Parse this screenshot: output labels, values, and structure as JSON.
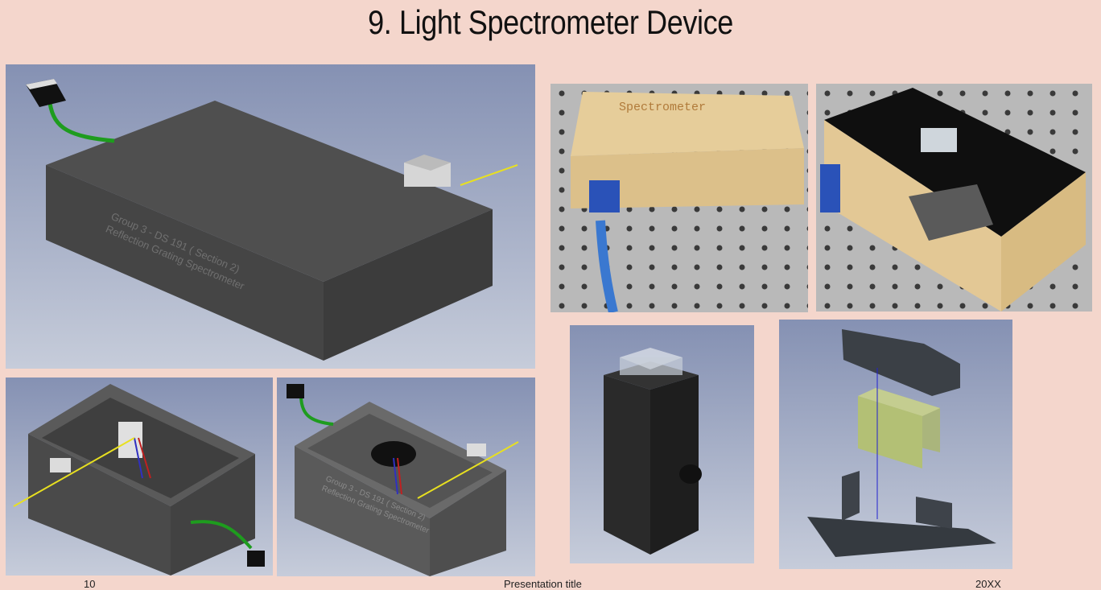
{
  "slide": {
    "title": "9. Light Spectrometer Device",
    "footer": {
      "page_number": "10",
      "presentation_title": "Presentation title",
      "date": "20XX"
    }
  },
  "images": {
    "main_render": {
      "engraving_line1": "Group 3 - DS 191 ( Section 2)",
      "engraving_line2": "Reflection Grating Spectrometer"
    },
    "interior_render_right": {
      "engraving_line1": "Group 3 - DS 191 ( Section 2)",
      "engraving_line2": "Reflection Grating Spectrometer"
    },
    "photo_closed_box": {
      "engraving": "Spectrometer"
    }
  },
  "colors": {
    "background": "#f4d6cc",
    "render_bg_top": "#8a96b6",
    "render_bg_bottom": "#c4cad8",
    "stone": "#4a4a4a",
    "fiber_green": "#20a020",
    "beam_yellow": "#e8e020",
    "wood": "#e3c895",
    "grating_green": "#b3c075"
  }
}
